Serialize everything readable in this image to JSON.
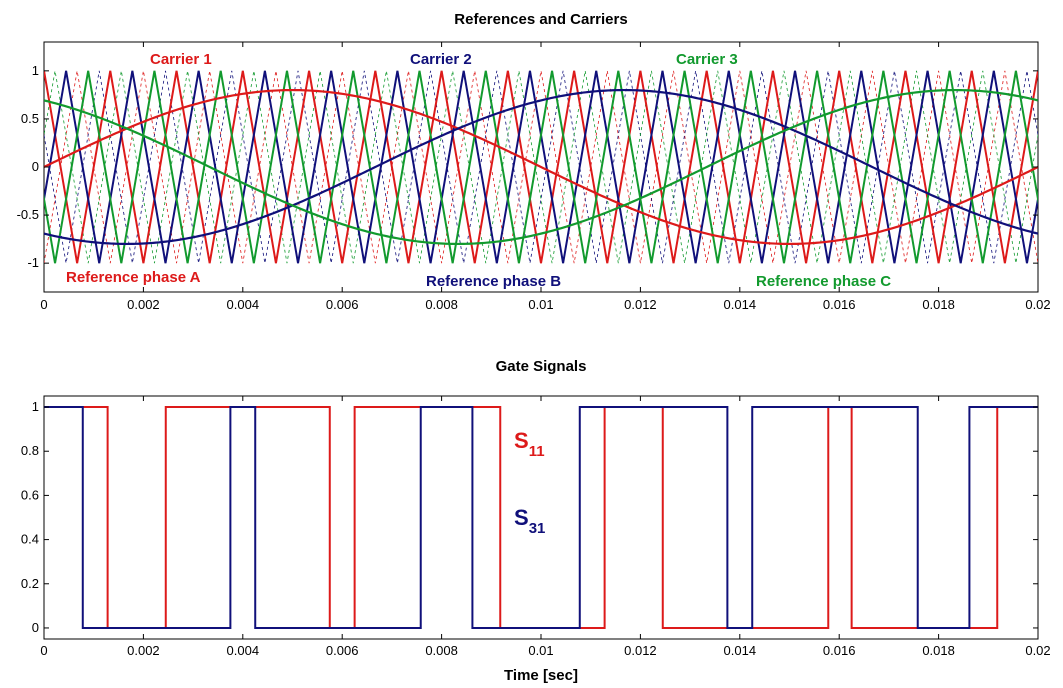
{
  "colors": {
    "red": "#dd1a1a",
    "blue": "#10107a",
    "green": "#129a2e"
  },
  "chart_data": [
    {
      "type": "line",
      "title": "References and Carriers",
      "xlim": [
        0,
        0.02
      ],
      "ylim": [
        -1.3,
        1.3
      ],
      "xticks": [
        "0",
        "0.002",
        "0.004",
        "0.006",
        "0.008",
        "0.01",
        "0.012",
        "0.014",
        "0.016",
        "0.018",
        "0.02"
      ],
      "yticks": [
        "1",
        "0.5",
        "0",
        "-0.5",
        "-1"
      ],
      "references": {
        "frequency_hz": 50,
        "amplitude": 0.8,
        "phase_shift_deg": [
          0,
          120,
          240
        ],
        "labels": [
          "Reference phase A",
          "Reference phase B",
          "Reference phase C"
        ]
      },
      "carriers": {
        "type": "triangular",
        "frequency_hz": 750,
        "amplitude": 1,
        "labels": [
          "Carrier 1",
          "Carrier 2",
          "Carrier 3"
        ],
        "shifted_copies": "dashed"
      }
    },
    {
      "type": "line",
      "title": "Gate Signals",
      "xlabel": "Time [sec]",
      "xlim": [
        0,
        0.02
      ],
      "ylim": [
        -0.05,
        1.05
      ],
      "xticks": [
        "0",
        "0.002",
        "0.004",
        "0.006",
        "0.008",
        "0.01",
        "0.012",
        "0.014",
        "0.016",
        "0.018",
        "0.02"
      ],
      "yticks": [
        "1",
        "0.8",
        "0.6",
        "0.4",
        "0.2",
        "0"
      ],
      "series": [
        {
          "name": "S",
          "subscript": "11",
          "x": [
            0,
            0.00128,
            0.00128,
            0.00245,
            0.00245,
            0.00575,
            0.00575,
            0.00625,
            0.00625,
            0.00918,
            0.00918,
            0.01128,
            0.01128,
            0.01245,
            0.01245,
            0.01578,
            0.01578,
            0.01625,
            0.01625,
            0.01918,
            0.01918,
            0.02
          ],
          "y": [
            1,
            1,
            0,
            0,
            1,
            1,
            0,
            0,
            1,
            1,
            0,
            0,
            1,
            1,
            0,
            0,
            1,
            1,
            0,
            0,
            1,
            1
          ]
        },
        {
          "name": "S",
          "subscript": "31",
          "x": [
            0,
            0.00078,
            0.00078,
            0.00375,
            0.00375,
            0.00425,
            0.00425,
            0.00758,
            0.00758,
            0.00862,
            0.00862,
            0.01078,
            0.01078,
            0.01375,
            0.01375,
            0.01425,
            0.01425,
            0.01758,
            0.01758,
            0.01862,
            0.01862,
            0.02
          ],
          "y": [
            1,
            1,
            0,
            0,
            1,
            1,
            0,
            0,
            1,
            1,
            0,
            0,
            1,
            1,
            0,
            0,
            1,
            1,
            0,
            0,
            1,
            1
          ]
        }
      ]
    }
  ],
  "annotations_top": [
    "Carrier 1",
    "Carrier 2",
    "Carrier 3",
    "Reference phase A",
    "Reference phase B",
    "Reference phase C"
  ]
}
